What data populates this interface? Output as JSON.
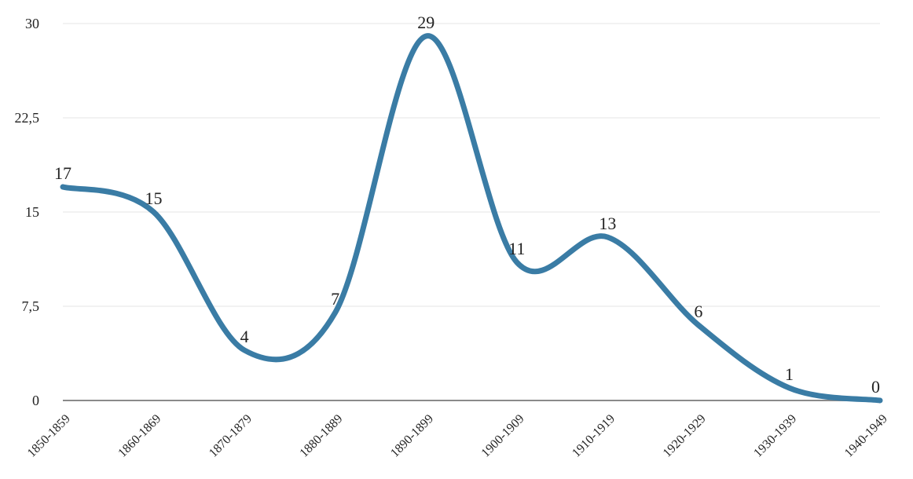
{
  "chart_data": {
    "type": "line",
    "smooth": true,
    "categories": [
      "1850-1859",
      "1860-1869",
      "1870-1879",
      "1880-1889",
      "1890-1899",
      "1900-1909",
      "1910-1919",
      "1920-1929",
      "1930-1939",
      "1940-1949"
    ],
    "values": [
      17,
      15,
      4,
      7,
      29,
      11,
      13,
      6,
      1,
      0
    ],
    "data_labels": [
      "17",
      "15",
      "4",
      "7",
      "29",
      "11",
      "13",
      "6",
      "1",
      "0"
    ],
    "ylim": [
      0,
      30
    ],
    "yticks": [
      0,
      7.5,
      15,
      22.5,
      30
    ],
    "ytick_labels": [
      "0",
      "7,5",
      "15",
      "22,5",
      "30"
    ],
    "grid": true,
    "legend": "none",
    "colors": {
      "series": "#3a7ca5",
      "grid": "#e6e6e6",
      "axis": "#8a8a8a"
    }
  }
}
